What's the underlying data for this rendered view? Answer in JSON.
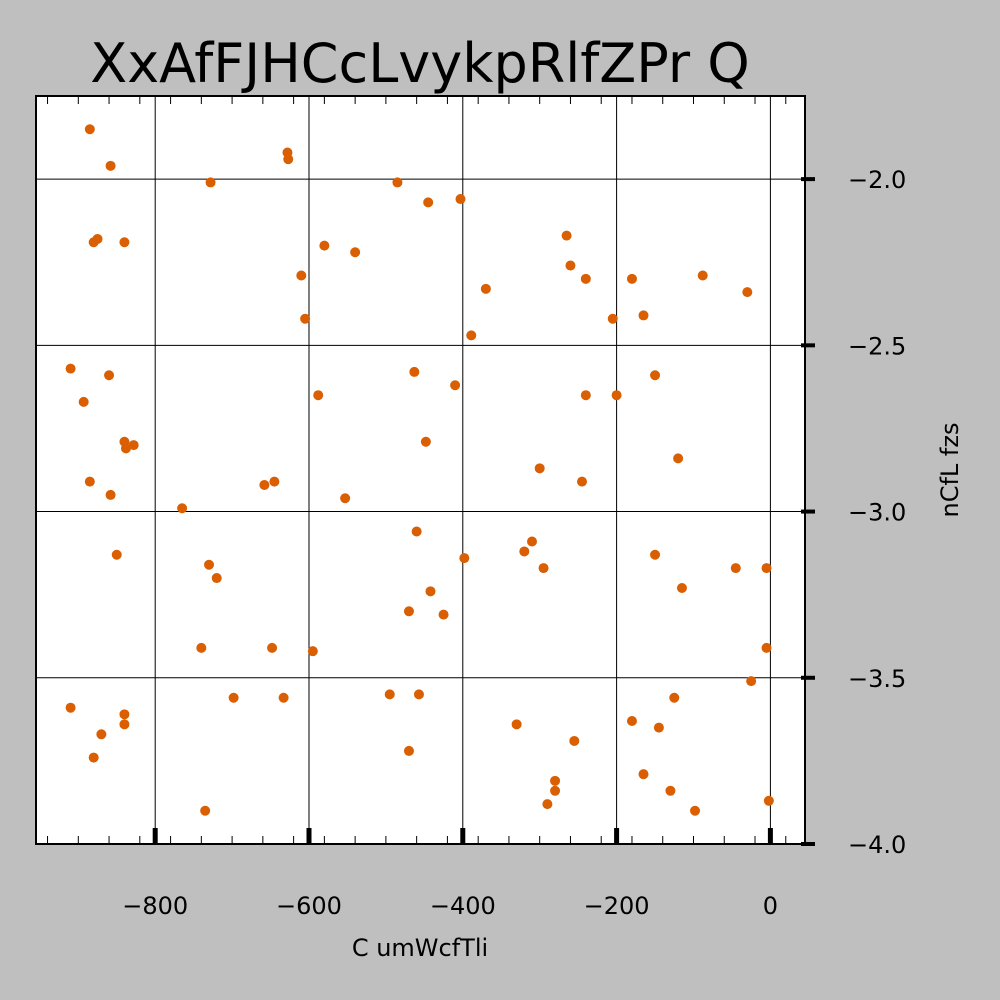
{
  "chart_data": {
    "type": "scatter",
    "title": "XxAfFJHCcLvykpRlfZPr Q",
    "xlabel": "C umWcfTli",
    "ylabel": "nCfL fzs",
    "xlim": [
      -955,
      45
    ],
    "ylim": [
      -4.0,
      -1.75
    ],
    "x_ticks": [
      -800,
      -600,
      -400,
      -200,
      0
    ],
    "x_tick_labels": [
      "−800",
      "−600",
      "−400",
      "−200",
      "0"
    ],
    "y_ticks": [
      -2.0,
      -2.5,
      -3.0,
      -3.5,
      -4.0
    ],
    "y_tick_labels": [
      "−2.0",
      "−2.5",
      "−3.0",
      "−3.5",
      "−4.0"
    ],
    "grid": true,
    "y_axis_position": "right",
    "marker_color": "#d95f02",
    "series": [
      {
        "x": [
          -885,
          -858,
          -880,
          -875,
          -840,
          -628,
          -627,
          -728,
          -580,
          -540,
          -485,
          -445,
          -403,
          -265,
          -260,
          -240,
          -180,
          -165,
          -205,
          -370,
          -389,
          -610,
          -605,
          -88,
          -30,
          -910,
          -860,
          -893,
          -463,
          -410,
          -588,
          -448,
          -240,
          -200,
          -150,
          -840,
          -838,
          -828,
          -885,
          -858,
          -765,
          -658,
          -645,
          -553,
          -300,
          -245,
          -120,
          -850,
          -460,
          -398,
          -320,
          -310,
          -295,
          -150,
          -45,
          -5,
          -730,
          -720,
          -740,
          -470,
          -442,
          -425,
          -115,
          -648,
          -595,
          -910,
          -870,
          -840,
          -698,
          -633,
          -495,
          -457,
          -330,
          -255,
          -180,
          -145,
          -125,
          -25,
          -5,
          -880,
          -840,
          -470,
          -280,
          -280,
          -290,
          -165,
          -130,
          -98,
          -735,
          -2
        ],
        "y": [
          -1.85,
          -1.96,
          -2.19,
          -2.18,
          -2.19,
          -1.92,
          -1.94,
          -2.01,
          -2.2,
          -2.22,
          -2.01,
          -2.07,
          -2.06,
          -2.17,
          -2.26,
          -2.3,
          -2.3,
          -2.41,
          -2.42,
          -2.33,
          -2.47,
          -2.29,
          -2.42,
          -2.29,
          -2.34,
          -2.57,
          -2.59,
          -2.67,
          -2.58,
          -2.62,
          -2.65,
          -2.79,
          -2.65,
          -2.65,
          -2.59,
          -2.79,
          -2.81,
          -2.8,
          -2.91,
          -2.95,
          -2.99,
          -2.92,
          -2.91,
          -2.96,
          -2.87,
          -2.91,
          -2.84,
          -3.13,
          -3.06,
          -3.14,
          -3.12,
          -3.09,
          -3.17,
          -3.13,
          -3.17,
          -3.17,
          -3.16,
          -3.2,
          -3.41,
          -3.3,
          -3.24,
          -3.31,
          -3.23,
          -3.41,
          -3.42,
          -3.59,
          -3.67,
          -3.61,
          -3.56,
          -3.56,
          -3.55,
          -3.55,
          -3.64,
          -3.69,
          -3.63,
          -3.65,
          -3.56,
          -3.51,
          -3.41,
          -3.74,
          -3.64,
          -3.72,
          -3.81,
          -3.84,
          -3.88,
          -3.79,
          -3.84,
          -3.9,
          -3.9,
          -3.87
        ]
      }
    ]
  }
}
